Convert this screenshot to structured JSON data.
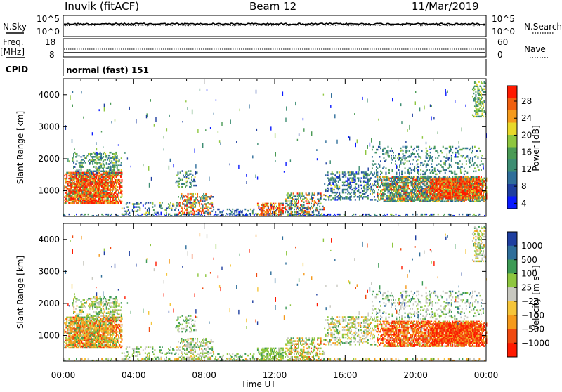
{
  "header": {
    "station": "Inuvik (fitACF)",
    "beam": "Beam 12",
    "date": "11/Mar/2019"
  },
  "noise_panel": {
    "left_label": "N.Sky",
    "right_label": "N.Search",
    "left_ticks": [
      "10^5",
      "10^0"
    ],
    "right_ticks": [
      "10^5",
      "10^0"
    ]
  },
  "freq_panel": {
    "left_label_1": "Freq.",
    "left_label_2": "[MHz]",
    "right_label": "Nave",
    "left_ticks": [
      "18",
      "8"
    ],
    "right_ticks": [
      "60",
      "0"
    ]
  },
  "cpid_panel": {
    "label": "CPID",
    "value": "normal (fast) 151"
  },
  "colors": {
    "power_scale": [
      "#0a1aff",
      "#1f3fa0",
      "#2f6e9a",
      "#3d8d72",
      "#4a9a55",
      "#8ec63f",
      "#e8d82a",
      "#f59a1c",
      "#f06010",
      "#ff1a00"
    ],
    "velocity_scale": [
      "#ff1a00",
      "#f04a10",
      "#f59a1c",
      "#f5c53a",
      "#c8c8c0",
      "#8ec63f",
      "#3d9a55",
      "#2f6e9a",
      "#1f3fa0"
    ]
  },
  "chart_data": [
    {
      "type": "heatmap",
      "ylabel": "Slant Range [km]",
      "xlabel": "",
      "yticks": [
        "1000",
        "2000",
        "3000",
        "4000"
      ],
      "ylim": [
        200,
        4500
      ],
      "xlim": [
        0,
        24
      ],
      "colorbar_label": "Power [dB]",
      "colorbar_ticks": [
        "28",
        "24",
        "20",
        "16",
        "12",
        "8",
        "4"
      ],
      "colorbar_range": [
        0,
        32
      ]
    },
    {
      "type": "heatmap",
      "ylabel": "Slant Range [km]",
      "xlabel": "Time UT",
      "yticks": [
        "1000",
        "2000",
        "3000",
        "4000"
      ],
      "xticks": [
        "00:00",
        "04:00",
        "08:00",
        "12:00",
        "16:00",
        "20:00",
        "00:00"
      ],
      "ylim": [
        200,
        4500
      ],
      "xlim": [
        0,
        24
      ],
      "colorbar_label": "Velocity [m s⁻¹]",
      "colorbar_ticks": [
        "1000",
        "500",
        "100",
        "25",
        "−25",
        "−100",
        "−500",
        "−1000"
      ]
    }
  ]
}
